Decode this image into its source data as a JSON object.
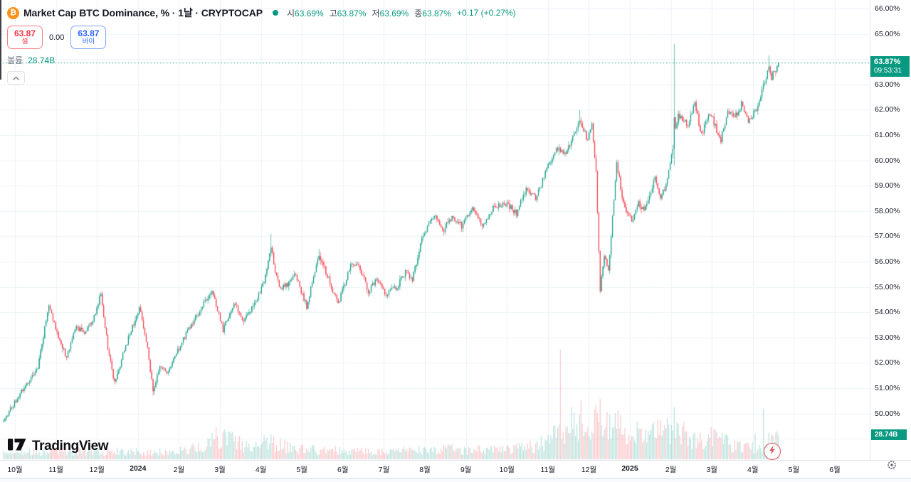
{
  "header": {
    "symbol_icon": "₿",
    "symbol_title": "Market Cap BTC Dominance, % · 1날 · CRYPTOCAP",
    "ohlc": {
      "open_label": "시",
      "open": "63.69%",
      "high_label": "고",
      "high": "63.87%",
      "low_label": "저",
      "low": "63.69%",
      "close_label": "종",
      "close": "63.87%",
      "change": "+0.17 (+0.27%)"
    },
    "sell_button": {
      "price": "63.87",
      "label": "셀"
    },
    "spread": "0.00",
    "buy_button": {
      "price": "63.87",
      "label": "바이"
    },
    "volume_label": "볼륨",
    "volume_value": "28.74B"
  },
  "price_scale": {
    "tick_values": [
      66,
      65,
      64,
      63,
      62,
      61,
      60,
      59,
      58,
      57,
      56,
      55,
      54,
      53,
      52,
      51,
      50
    ],
    "tick_suffix": "%",
    "price_badge": {
      "price": "63.87%",
      "countdown": "09:53:31"
    },
    "volume_badge": "28.74B"
  },
  "time_scale": {
    "labels": [
      {
        "text": "10월"
      },
      {
        "text": "11월"
      },
      {
        "text": "12월"
      },
      {
        "text": "2024",
        "bold": true
      },
      {
        "text": "2월"
      },
      {
        "text": "3월"
      },
      {
        "text": "4월"
      },
      {
        "text": "5월"
      },
      {
        "text": "6월"
      },
      {
        "text": "7월"
      },
      {
        "text": "8월"
      },
      {
        "text": "9월"
      },
      {
        "text": "10월"
      },
      {
        "text": "11월"
      },
      {
        "text": "12월"
      },
      {
        "text": "2025",
        "bold": true
      },
      {
        "text": "2월"
      },
      {
        "text": "3월"
      },
      {
        "text": "4월"
      },
      {
        "text": "5월"
      },
      {
        "text": "6월"
      }
    ]
  },
  "logo_text": "TradingView",
  "chart_data": {
    "type": "candlestick+volume",
    "title": "Market Cap BTC Dominance",
    "symbol": "CRYPTOCAP",
    "interval": "1D",
    "x_start": "2023-10-01",
    "days": 566,
    "current_price": 63.87,
    "current_open": 63.69,
    "current_high": 63.87,
    "current_low": 63.69,
    "current_volume_b": 28.74,
    "y_axis": {
      "min": 49.0,
      "max": 66.3,
      "tick_step": 1.0,
      "unit": "%"
    },
    "last_candle": {
      "o": 63.69,
      "h": 63.87,
      "l": 63.69,
      "c": 63.87
    },
    "price_anchors": [
      [
        0,
        49.7
      ],
      [
        12,
        50.8
      ],
      [
        25,
        51.8
      ],
      [
        33,
        54.3
      ],
      [
        40,
        53.0
      ],
      [
        46,
        52.2
      ],
      [
        52,
        53.4
      ],
      [
        60,
        53.2
      ],
      [
        66,
        53.8
      ],
      [
        71,
        54.8
      ],
      [
        76,
        52.6
      ],
      [
        81,
        51.2
      ],
      [
        88,
        52.5
      ],
      [
        99,
        54.2
      ],
      [
        105,
        52.6
      ],
      [
        109,
        50.9
      ],
      [
        114,
        51.9
      ],
      [
        120,
        51.6
      ],
      [
        127,
        52.5
      ],
      [
        140,
        53.8
      ],
      [
        152,
        54.9
      ],
      [
        160,
        53.3
      ],
      [
        168,
        54.4
      ],
      [
        175,
        53.6
      ],
      [
        183,
        54.3
      ],
      [
        190,
        55.2
      ],
      [
        195,
        56.6
      ],
      [
        198,
        55.6
      ],
      [
        201,
        55.0
      ],
      [
        205,
        55.0
      ],
      [
        213,
        55.5
      ],
      [
        221,
        54.2
      ],
      [
        230,
        56.3
      ],
      [
        237,
        55.3
      ],
      [
        244,
        54.3
      ],
      [
        253,
        55.9
      ],
      [
        259,
        55.9
      ],
      [
        266,
        54.8
      ],
      [
        272,
        55.3
      ],
      [
        279,
        54.7
      ],
      [
        287,
        55.0
      ],
      [
        293,
        55.6
      ],
      [
        298,
        55.3
      ],
      [
        305,
        56.9
      ],
      [
        314,
        57.9
      ],
      [
        320,
        57.2
      ],
      [
        327,
        57.8
      ],
      [
        334,
        57.4
      ],
      [
        342,
        58.1
      ],
      [
        349,
        57.4
      ],
      [
        358,
        58.2
      ],
      [
        367,
        58.3
      ],
      [
        374,
        57.9
      ],
      [
        381,
        58.9
      ],
      [
        388,
        58.5
      ],
      [
        397,
        59.8
      ],
      [
        404,
        60.5
      ],
      [
        410,
        60.2
      ],
      [
        415,
        60.9
      ],
      [
        420,
        61.6
      ],
      [
        426,
        60.8
      ],
      [
        429,
        61.4
      ],
      [
        432,
        59.5
      ],
      [
        435,
        54.9
      ],
      [
        438,
        56.2
      ],
      [
        441,
        55.6
      ],
      [
        444,
        57.8
      ],
      [
        447,
        59.9
      ],
      [
        451,
        58.6
      ],
      [
        455,
        57.9
      ],
      [
        459,
        57.6
      ],
      [
        463,
        58.3
      ],
      [
        467,
        58.0
      ],
      [
        471,
        58.6
      ],
      [
        475,
        59.3
      ],
      [
        479,
        58.6
      ],
      [
        483,
        59.0
      ],
      [
        486,
        59.8
      ],
      [
        489,
        60.9
      ],
      [
        492,
        61.8
      ],
      [
        499,
        61.4
      ],
      [
        504,
        62.2
      ],
      [
        509,
        61.0
      ],
      [
        515,
        61.9
      ],
      [
        520,
        61.2
      ],
      [
        523,
        60.8
      ],
      [
        528,
        62.0
      ],
      [
        533,
        61.7
      ],
      [
        538,
        62.2
      ],
      [
        543,
        61.6
      ],
      [
        548,
        61.9
      ],
      [
        552,
        62.6
      ],
      [
        556,
        63.3
      ],
      [
        558,
        63.8
      ],
      [
        560,
        63.3
      ],
      [
        563,
        63.6
      ],
      [
        565,
        63.87
      ]
    ],
    "wick_events": {
      "109": {
        "low": 50.7
      },
      "195": {
        "high": 57.1
      },
      "230": {
        "high": 56.5
      },
      "420": {
        "high": 62.0
      },
      "435": {
        "low": 54.75
      },
      "489": {
        "high": 64.6,
        "close": 61.7,
        "low": 59.8
      },
      "558": {
        "high": 64.15
      }
    },
    "volume_anchors": [
      [
        0,
        7
      ],
      [
        30,
        9
      ],
      [
        60,
        10
      ],
      [
        90,
        9
      ],
      [
        120,
        8
      ],
      [
        148,
        14
      ],
      [
        155,
        24
      ],
      [
        165,
        22
      ],
      [
        180,
        14
      ],
      [
        195,
        20
      ],
      [
        210,
        12
      ],
      [
        240,
        10
      ],
      [
        270,
        9
      ],
      [
        300,
        11
      ],
      [
        330,
        12
      ],
      [
        360,
        10
      ],
      [
        390,
        16
      ],
      [
        400,
        24
      ],
      [
        410,
        36
      ],
      [
        420,
        34
      ],
      [
        432,
        40
      ],
      [
        440,
        44
      ],
      [
        450,
        38
      ],
      [
        460,
        30
      ],
      [
        470,
        26
      ],
      [
        480,
        30
      ],
      [
        491,
        38
      ],
      [
        500,
        26
      ],
      [
        510,
        20
      ],
      [
        520,
        26
      ],
      [
        530,
        17
      ],
      [
        540,
        13
      ],
      [
        550,
        14
      ],
      [
        558,
        22
      ],
      [
        565,
        28
      ]
    ],
    "volume_events": {
      "155": 38,
      "195": 30,
      "406": 130,
      "414": 62,
      "421": 70,
      "432": 65,
      "435": 72,
      "446": 55,
      "462": 45,
      "477": 48,
      "489": 62,
      "516": 38,
      "548": 30,
      "554": 60
    },
    "colors": {
      "up": "#089981",
      "down": "#f23645",
      "vol_up": "rgba(8,153,129,0.30)",
      "vol_down": "rgba(242,54,69,0.30)",
      "grid": "#eef2f8",
      "price_line": "#089981",
      "accent_buy": "#2962ff",
      "accent_sell": "#f23645"
    },
    "grid": true,
    "price_line_style": "dotted"
  }
}
